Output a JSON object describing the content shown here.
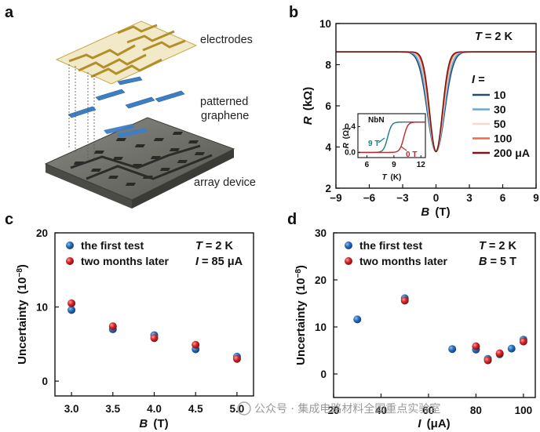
{
  "panels": {
    "a": "a",
    "b": "b",
    "c": "c",
    "d": "d"
  },
  "panel_a": {
    "labels": [
      "electrodes",
      "patterned",
      "graphene",
      "array device"
    ],
    "colors": {
      "electrode": "#c8a84a",
      "graphene": "#3e7fc4",
      "chip": "#6b6b66"
    }
  },
  "watermark": "公众号 · 集成电路材料全国重点实验室",
  "chart_data": [
    {
      "id": "b",
      "type": "line",
      "xlabel_main": "B",
      "xlabel_unit": "(T)",
      "ylabel_main": "R",
      "ylabel_unit": "(kΩ)",
      "xlim": [
        -9,
        9
      ],
      "ylim": [
        2,
        10
      ],
      "xticks": [
        "−9",
        "−6",
        "−3",
        "0",
        "3",
        "6",
        "9"
      ],
      "yticks": [
        "2",
        "4",
        "6",
        "8",
        "10"
      ],
      "annotation": "T = 2 K",
      "legend_title": "I =",
      "plateau": 8.62,
      "dip_minimum": 3.78,
      "series": [
        {
          "name": "10",
          "color": "#1f4e6f"
        },
        {
          "name": "30",
          "color": "#6aa9cf"
        },
        {
          "name": "50",
          "color": "#f4d9d0"
        },
        {
          "name": "100",
          "color": "#ef6a4a"
        },
        {
          "name": "200 μA",
          "color": "#7a1616"
        }
      ],
      "inset": {
        "title": "NbN",
        "xlabel_main": "T",
        "xlabel_unit": "(K)",
        "ylabel_main": "R",
        "ylabel_unit": "(Ω)",
        "xlim": [
          5,
          12.5
        ],
        "ylim": [
          -0.08,
          0.6
        ],
        "xticks": [
          "6",
          "9",
          "12"
        ],
        "yticks": [
          "0.0",
          "0.4"
        ],
        "plateau": 0.47,
        "series": [
          {
            "name": "9 T",
            "transition": 8.3,
            "color": "#1a7f7a"
          },
          {
            "name": "0 T",
            "transition": 10.1,
            "color": "#c0272d"
          }
        ]
      }
    },
    {
      "id": "c",
      "type": "scatter",
      "xlabel_main": "B",
      "xlabel_unit": "(T)",
      "ylabel_main": "Uncertainty",
      "ylabel_unit": "(10",
      "ylabel_sup": "−8",
      "ylabel_close": ")",
      "xlim": [
        2.8,
        5.2
      ],
      "ylim": [
        -2,
        20
      ],
      "xticks": [
        "3.0",
        "3.5",
        "4.0",
        "4.5",
        "5.0"
      ],
      "yticks": [
        "0",
        "10",
        "20"
      ],
      "annotation1": "T = 2 K",
      "annotation2": "I = 85 μA",
      "series": [
        {
          "name": "the first test",
          "color": "#1f5fa8",
          "x": [
            3.0,
            3.5,
            4.0,
            4.5,
            5.0
          ],
          "y": [
            9.6,
            7.0,
            6.2,
            4.3,
            3.3
          ]
        },
        {
          "name": "two months later",
          "color": "#d42a2a",
          "x": [
            3.0,
            3.5,
            4.0,
            4.5,
            5.0
          ],
          "y": [
            10.5,
            7.4,
            5.8,
            4.9,
            3.0
          ]
        }
      ]
    },
    {
      "id": "d",
      "type": "scatter",
      "xlabel_main": "I",
      "xlabel_unit": "(μA)",
      "ylabel_main": "Uncertainty",
      "ylabel_unit": "(10",
      "ylabel_sup": "−8",
      "ylabel_close": ")",
      "xlim": [
        20,
        105
      ],
      "ylim": [
        -5,
        30
      ],
      "xticks": [
        "20",
        "40",
        "60",
        "80",
        "100"
      ],
      "yticks": [
        "0",
        "10",
        "20",
        "30"
      ],
      "annotation1": "T = 2 K",
      "annotation2": "B = 5 T",
      "series": [
        {
          "name": "the first test",
          "color": "#1f5fa8",
          "x": [
            30,
            50,
            70,
            80,
            85,
            90,
            95,
            100
          ],
          "y": [
            11.6,
            16.1,
            5.3,
            5.2,
            3.2,
            4.2,
            5.4,
            7.3
          ]
        },
        {
          "name": "two months later",
          "color": "#d42a2a",
          "x": [
            50,
            80,
            85,
            90,
            100
          ],
          "y": [
            15.6,
            5.9,
            2.9,
            4.4,
            6.9
          ]
        }
      ]
    }
  ]
}
